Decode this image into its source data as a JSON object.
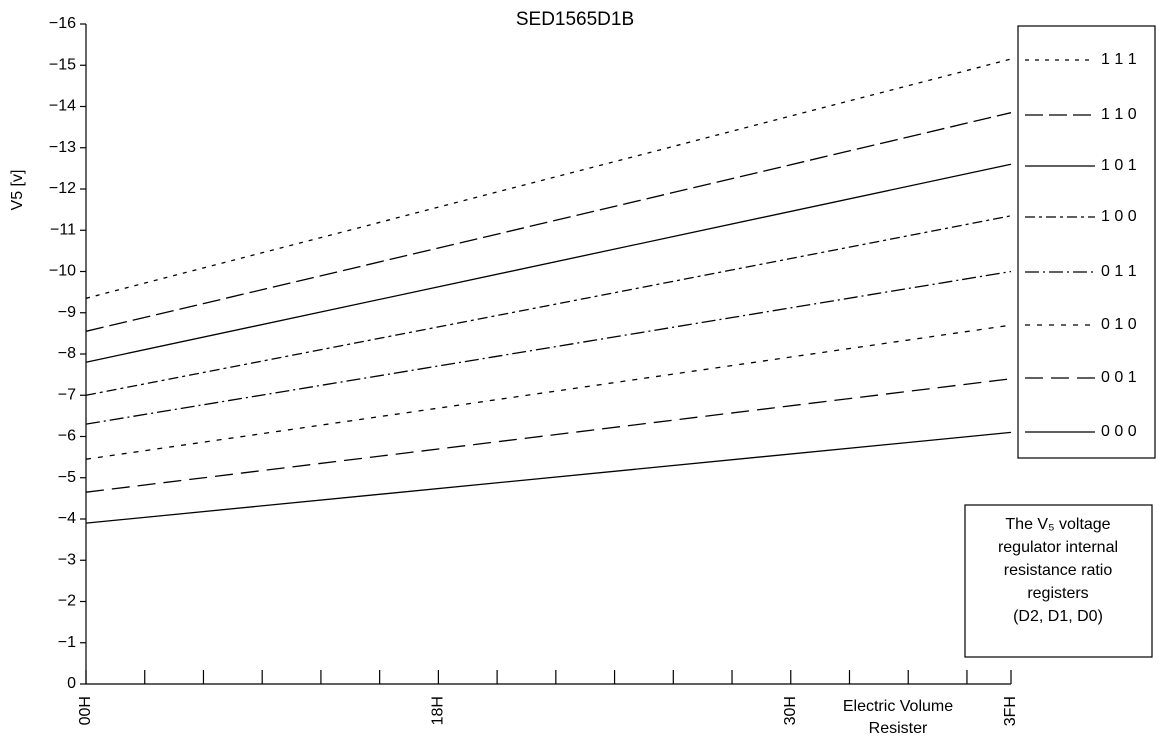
{
  "chart_data": {
    "type": "line",
    "title": "SED1565D1B",
    "ylabel": "V5 [v]",
    "xlabel": [
      "Electric Volume",
      "Resister"
    ],
    "x": [
      0,
      63
    ],
    "xlim": [
      0,
      63
    ],
    "xticks": [
      {
        "value": 0,
        "label": "00H"
      },
      {
        "value": 24,
        "label": "18H"
      },
      {
        "value": 48,
        "label": "30H"
      },
      {
        "value": 63,
        "label": "3FH"
      }
    ],
    "x_minor_ticks": [
      4,
      8,
      12,
      16,
      20,
      28,
      32,
      36,
      40,
      44,
      52,
      56,
      60
    ],
    "ylim": [
      0,
      -16
    ],
    "yticks": [
      0,
      {
        "value": -1,
        "label": "−1"
      },
      {
        "value": -2,
        "label": "−2"
      },
      {
        "value": -3,
        "label": "−3"
      },
      {
        "value": -4,
        "label": "−4"
      },
      {
        "value": -5,
        "label": "−5"
      },
      {
        "value": -6,
        "label": "−6"
      },
      {
        "value": -7,
        "label": "−7"
      },
      {
        "value": -8,
        "label": "−8"
      },
      {
        "value": -9,
        "label": "−9"
      },
      {
        "value": -10,
        "label": "−10"
      },
      {
        "value": -11,
        "label": "−11"
      },
      {
        "value": -12,
        "label": "−12"
      },
      {
        "value": -13,
        "label": "−13"
      },
      {
        "value": -14,
        "label": "−14"
      },
      {
        "value": -15,
        "label": "−15"
      },
      {
        "value": -16,
        "label": "−16"
      }
    ],
    "series": [
      {
        "name": "1 1 1",
        "color": "#000000",
        "dash": "4 6",
        "values": [
          -9.35,
          -15.15
        ]
      },
      {
        "name": "1 1 0",
        "color": "#000000",
        "dash": "18 6",
        "values": [
          -8.55,
          -13.85
        ]
      },
      {
        "name": "1 0 1",
        "color": "#000000",
        "dash": "none",
        "values": [
          -7.8,
          -12.6
        ]
      },
      {
        "name": "1 0 0",
        "color": "#000000",
        "dash": "10 4 3 4",
        "values": [
          -7.0,
          -11.35
        ]
      },
      {
        "name": "0 1 1",
        "color": "#000000",
        "dash": "14 4 2 4",
        "values": [
          -6.3,
          -10.0
        ]
      },
      {
        "name": "0 1 0",
        "color": "#000000",
        "dash": "5 7",
        "values": [
          -5.45,
          -8.7
        ]
      },
      {
        "name": "0 0 1",
        "color": "#000000",
        "dash": "18 8",
        "values": [
          -4.65,
          -7.4
        ]
      },
      {
        "name": "0 0 0",
        "color": "#000000",
        "dash": "none",
        "values": [
          -3.9,
          -6.1
        ]
      }
    ],
    "annotation": [
      "The V₅ voltage",
      "regulator internal",
      "resistance ratio",
      "registers",
      "(D2, D1, D0)"
    ]
  }
}
